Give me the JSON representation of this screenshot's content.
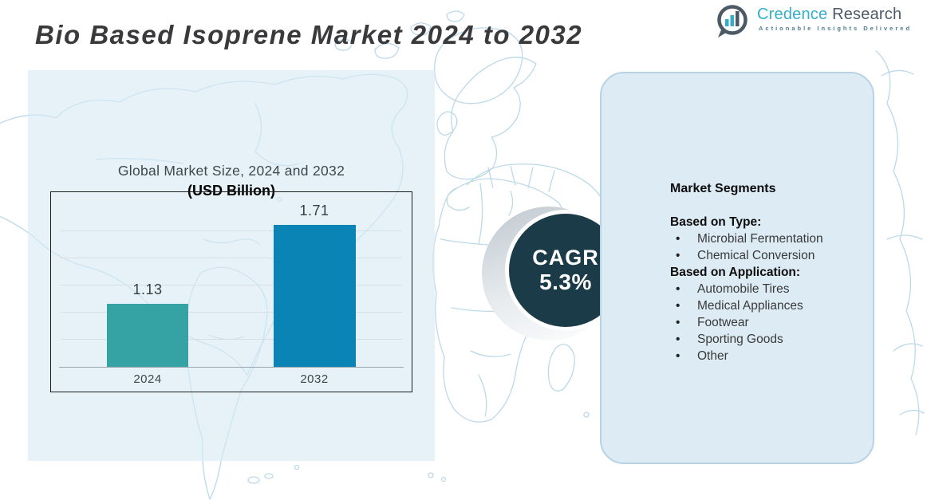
{
  "header": {
    "title": "Bio Based Isoprene Market 2024 to 2032",
    "logo": {
      "brand_primary": "Credence",
      "brand_secondary": " Research",
      "tagline": "Actionable Insights Delivered",
      "brand_primary_color": "#35aecc",
      "brand_secondary_color": "#4d5a66"
    }
  },
  "chart": {
    "title_line1": "Global Market Size, 2024 and 2032",
    "title_line2": "(USD Billion)"
  },
  "chart_data": {
    "type": "bar",
    "title": "Global Market Size, 2024 and 2032 (USD Billion)",
    "categories": [
      "2024",
      "2032"
    ],
    "values": [
      1.13,
      1.71
    ],
    "colors": [
      "#35a3a4",
      "#0a84b5"
    ],
    "ylim": [
      0.67,
      1.95
    ],
    "grid": true,
    "legend": false,
    "xlabel": "",
    "ylabel": "USD Billion"
  },
  "cagr": {
    "label": "CAGR",
    "value": "5.3%",
    "circle_color": "#1c3b48",
    "text_color": "#ffffff"
  },
  "segments_panel": {
    "title": "Market Segments",
    "sections": [
      {
        "heading": "Based on Type:",
        "items": [
          "Microbial Fermentation",
          "Chemical Conversion"
        ]
      },
      {
        "heading": "Based on Application:",
        "items": [
          "Automobile Tires",
          "Medical Appliances",
          "Footwear",
          "Sporting Goods",
          "Other"
        ]
      }
    ],
    "panel_bg": "#dcebf4",
    "panel_border": "#b7d3e2"
  },
  "map": {
    "stroke_color": "#bcd9e9"
  }
}
